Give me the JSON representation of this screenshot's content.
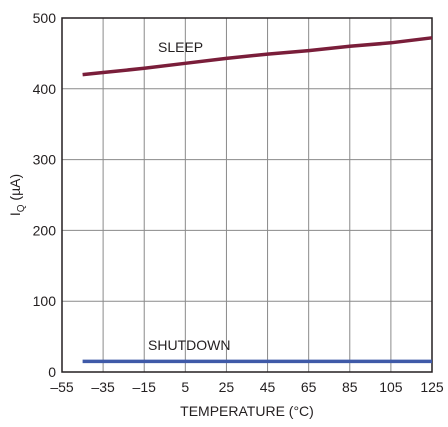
{
  "chart_data": {
    "type": "line",
    "xlabel": "TEMPERATURE (°C)",
    "ylabel_main": "I",
    "ylabel_sub": "Q",
    "ylabel_unit": " (µA)",
    "xlim": [
      -55,
      125
    ],
    "ylim": [
      0,
      500
    ],
    "xticks": [
      -55,
      -35,
      -15,
      5,
      25,
      45,
      65,
      85,
      105,
      125
    ],
    "xtick_labels": [
      "–55",
      "–35",
      "–15",
      "5",
      "25",
      "45",
      "65",
      "85",
      "105",
      "125"
    ],
    "yticks": [
      0,
      100,
      200,
      300,
      400,
      500
    ],
    "ytick_labels": [
      "0",
      "100",
      "200",
      "300",
      "400",
      "500"
    ],
    "grid": true,
    "series": [
      {
        "name": "SLEEP",
        "color": "#7a1e3a",
        "x": [
          -45,
          -35,
          -15,
          5,
          25,
          45,
          65,
          85,
          105,
          125
        ],
        "y": [
          420,
          423,
          429,
          436,
          443,
          449,
          454,
          460,
          465,
          472
        ]
      },
      {
        "name": "SHUTDOWN",
        "color": "#3f5aa8",
        "x": [
          -45,
          -35,
          -15,
          5,
          25,
          45,
          65,
          85,
          105,
          125
        ],
        "y": [
          15,
          15,
          15,
          15,
          15,
          15,
          15,
          15,
          15,
          15
        ]
      }
    ]
  }
}
